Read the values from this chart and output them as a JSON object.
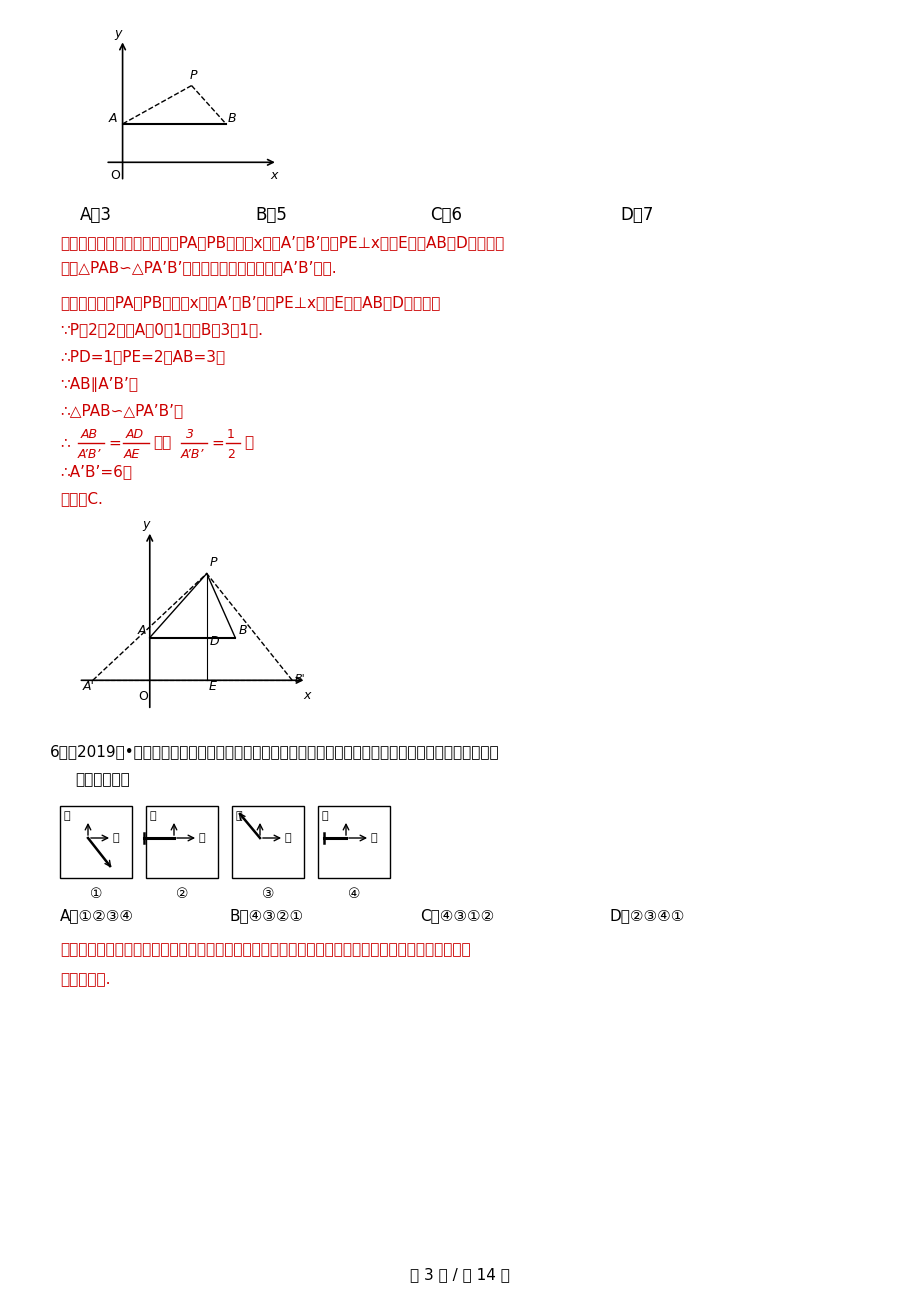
{
  "bg_color": "#ffffff",
  "page_width": 9.2,
  "page_height": 13.02,
  "red": "#cc0000",
  "answer_A": "A．3",
  "answer_B": "B．5",
  "answer_C": "C．6",
  "answer_D": "D．7",
  "analysis1": "【分析】利用中心投影，延长PA、PB分别交x轴于A’、B’，作PE⊥x轴于E，交AB于D，如图，",
  "analysis2": "证明△PAB∽△PA’B’，然后利用相似比可求出A’B’的长.",
  "solution1": "【解析】延长PA、PB分别交x轴于A’、B’，作PE⊥x轴于E，交AB于D，如图，",
  "solution2": "∵P（2，2），A（0，1），B（3，1）.",
  "solution3": "∴PD=1，PE=2，AB=3，",
  "solution4": "∵AB∥A’B’，",
  "solution5": "∴△PAB∽△PA’B’，",
  "sol_frac_prefix": "∴",
  "sol_frac_mid": "，即",
  "sol_frac_suffix": "，",
  "solution6": "∴A’B’=6，",
  "solution7": "故选：C.",
  "q6_line1": "6．（2019秋•平度市期末）如图是小明一天看到的一根电线杆的影子的俦视图，按时间先后顺序排列正确",
  "q6_line2": "的是（　　）",
  "north": "北",
  "east": "东",
  "circle1": "①",
  "circle2": "②",
  "circle3": "③",
  "circle4": "④",
  "q6_opt_A": "A．①②③④",
  "q6_opt_B": "B．④③②①",
  "q6_opt_C": "C．④③①②",
  "q6_opt_D": "D．②③④①",
  "q6_analysis1": "【分析】根据平行投影的规律：早晨到傍晩物体的指向是：西－西北－北－东北－东，影长由长变短，",
  "q6_analysis2": "再变长可得.",
  "footer": "第 3 页 / 共 14 页",
  "frac_AB": "AB",
  "frac_ApBp": "A’B’",
  "frac_AD": "AD",
  "frac_AE": "AE",
  "frac_3": "3",
  "frac_1": "1",
  "frac_2": "2"
}
